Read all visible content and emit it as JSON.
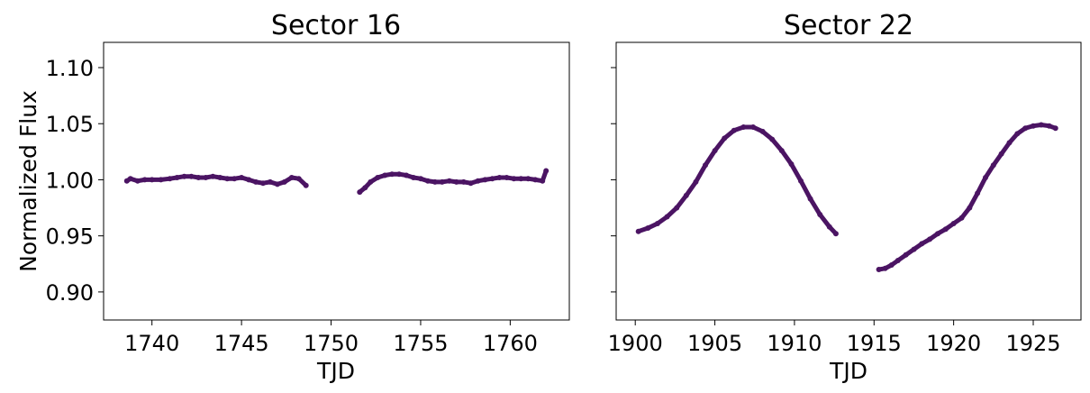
{
  "chart_data": [
    {
      "type": "scatter",
      "title": "Sector 16",
      "xlabel": "TJD",
      "ylabel": "Normalized Flux",
      "xlim": [
        1737.3,
        1763.3
      ],
      "ylim": [
        0.875,
        1.1225
      ],
      "xticks": [
        1740,
        1745,
        1750,
        1755,
        1760
      ],
      "yticks": [
        0.9,
        0.95,
        1.0,
        1.05,
        1.1
      ],
      "ytick_labels": [
        "0.90",
        "0.95",
        "1.00",
        "1.05",
        "1.10"
      ],
      "marker_color": "#4b1463",
      "series": [
        {
          "x": [
            1738.6,
            1738.8,
            1739.2,
            1739.6,
            1740.0,
            1740.5,
            1741.0,
            1741.4,
            1741.8,
            1742.2,
            1742.6,
            1743.0,
            1743.4,
            1743.8,
            1744.2,
            1744.6,
            1745.0,
            1745.4,
            1745.8,
            1746.2,
            1746.6,
            1747.0,
            1747.4,
            1747.8,
            1748.2,
            1748.6
          ],
          "y": [
            0.999,
            1.001,
            0.999,
            1.0,
            1.0,
            1.0,
            1.001,
            1.002,
            1.003,
            1.003,
            1.002,
            1.002,
            1.003,
            1.002,
            1.001,
            1.001,
            1.002,
            1.0,
            0.998,
            0.997,
            0.998,
            0.996,
            0.998,
            1.002,
            1.001,
            0.995
          ]
        },
        {
          "x": [
            1751.6,
            1751.9,
            1752.2,
            1752.6,
            1753.0,
            1753.4,
            1753.8,
            1754.2,
            1754.6,
            1755.0,
            1755.4,
            1755.8,
            1756.2,
            1756.6,
            1757.0,
            1757.4,
            1757.8,
            1758.2,
            1758.6,
            1759.0,
            1759.4,
            1759.8,
            1760.2,
            1760.6,
            1761.0,
            1761.4,
            1761.8,
            1762.0
          ],
          "y": [
            0.989,
            0.993,
            0.998,
            1.002,
            1.004,
            1.005,
            1.005,
            1.004,
            1.002,
            1.001,
            0.999,
            0.998,
            0.998,
            0.999,
            0.998,
            0.998,
            0.997,
            0.999,
            1.0,
            1.001,
            1.002,
            1.002,
            1.001,
            1.001,
            1.001,
            1.0,
            0.999,
            1.008
          ]
        }
      ]
    },
    {
      "type": "scatter",
      "title": "Sector 22",
      "xlabel": "TJD",
      "ylabel": "",
      "xlim": [
        1898.8,
        1928.0
      ],
      "ylim": [
        0.875,
        1.1225
      ],
      "xticks": [
        1900,
        1905,
        1910,
        1915,
        1920,
        1925
      ],
      "yticks": [
        0.9,
        0.95,
        1.0,
        1.05,
        1.1
      ],
      "marker_color": "#4b1463",
      "series": [
        {
          "x": [
            1900.2,
            1900.8,
            1901.4,
            1902.0,
            1902.6,
            1903.2,
            1903.8,
            1904.4,
            1905.0,
            1905.6,
            1906.2,
            1906.8,
            1907.4,
            1908.0,
            1908.6,
            1909.2,
            1909.8,
            1910.4,
            1911.0,
            1911.6,
            1912.2,
            1912.6
          ],
          "y": [
            0.954,
            0.957,
            0.961,
            0.967,
            0.975,
            0.986,
            0.998,
            1.013,
            1.026,
            1.037,
            1.044,
            1.047,
            1.047,
            1.043,
            1.036,
            1.026,
            1.014,
            0.999,
            0.983,
            0.969,
            0.958,
            0.952
          ]
        },
        {
          "x": [
            1915.3,
            1915.7,
            1916.1,
            1916.5,
            1917.0,
            1917.5,
            1918.0,
            1918.5,
            1919.0,
            1919.5,
            1920.0,
            1920.5,
            1921.0,
            1921.5,
            1922.0,
            1922.5,
            1923.0,
            1923.5,
            1924.0,
            1924.5,
            1925.0,
            1925.5,
            1926.0,
            1926.4
          ],
          "y": [
            0.92,
            0.921,
            0.924,
            0.928,
            0.933,
            0.938,
            0.943,
            0.947,
            0.952,
            0.956,
            0.961,
            0.966,
            0.975,
            0.988,
            1.002,
            1.013,
            1.023,
            1.033,
            1.041,
            1.046,
            1.048,
            1.049,
            1.048,
            1.046
          ]
        }
      ]
    }
  ]
}
